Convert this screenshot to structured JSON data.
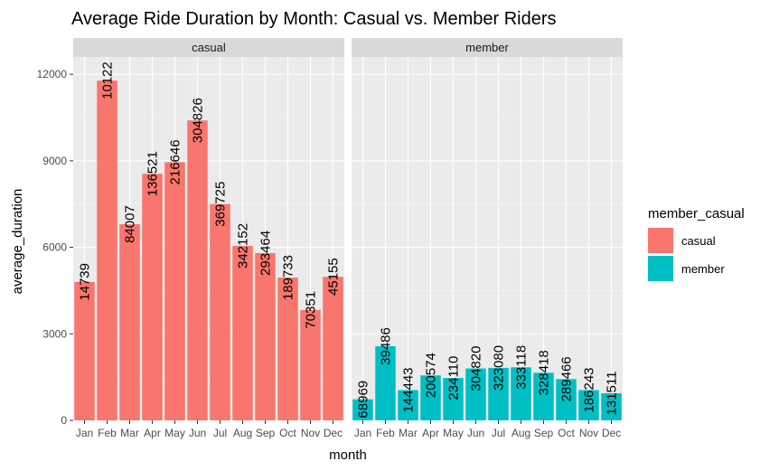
{
  "chart_data": {
    "type": "bar",
    "title": "Average Ride Duration by Month: Casual vs. Member Riders",
    "xlabel": "month",
    "ylabel": "average_duration",
    "ylim": [
      0,
      12600
    ],
    "yticks": [
      0,
      3000,
      6000,
      9000,
      12000
    ],
    "grid": true,
    "categories": [
      "Jan",
      "Feb",
      "Mar",
      "Apr",
      "May",
      "Jun",
      "Jul",
      "Aug",
      "Sep",
      "Oct",
      "Nov",
      "Dec"
    ],
    "facets": [
      {
        "name": "casual",
        "color": "#F8766D",
        "values": [
          4800,
          11780,
          6800,
          8550,
          8950,
          10400,
          7500,
          6050,
          5800,
          4950,
          3830,
          4980
        ],
        "labels": [
          "14739",
          "10122",
          "84007",
          "136521",
          "216646",
          "304826",
          "369725",
          "342152",
          "293464",
          "189733",
          "70351",
          "45155"
        ]
      },
      {
        "name": "member",
        "color": "#00BFC4",
        "values": [
          730,
          2570,
          1050,
          1560,
          1470,
          1800,
          1820,
          1840,
          1650,
          1430,
          1050,
          940
        ],
        "labels": [
          "68969",
          "39486",
          "144443",
          "200574",
          "234110",
          "304820",
          "323080",
          "333118",
          "328418",
          "289466",
          "186243",
          "131511"
        ]
      }
    ],
    "legend": {
      "title": "member_casual",
      "placement": "right",
      "entries": [
        {
          "label": "casual",
          "color": "#F8766D"
        },
        {
          "label": "member",
          "color": "#00BFC4"
        }
      ]
    }
  }
}
